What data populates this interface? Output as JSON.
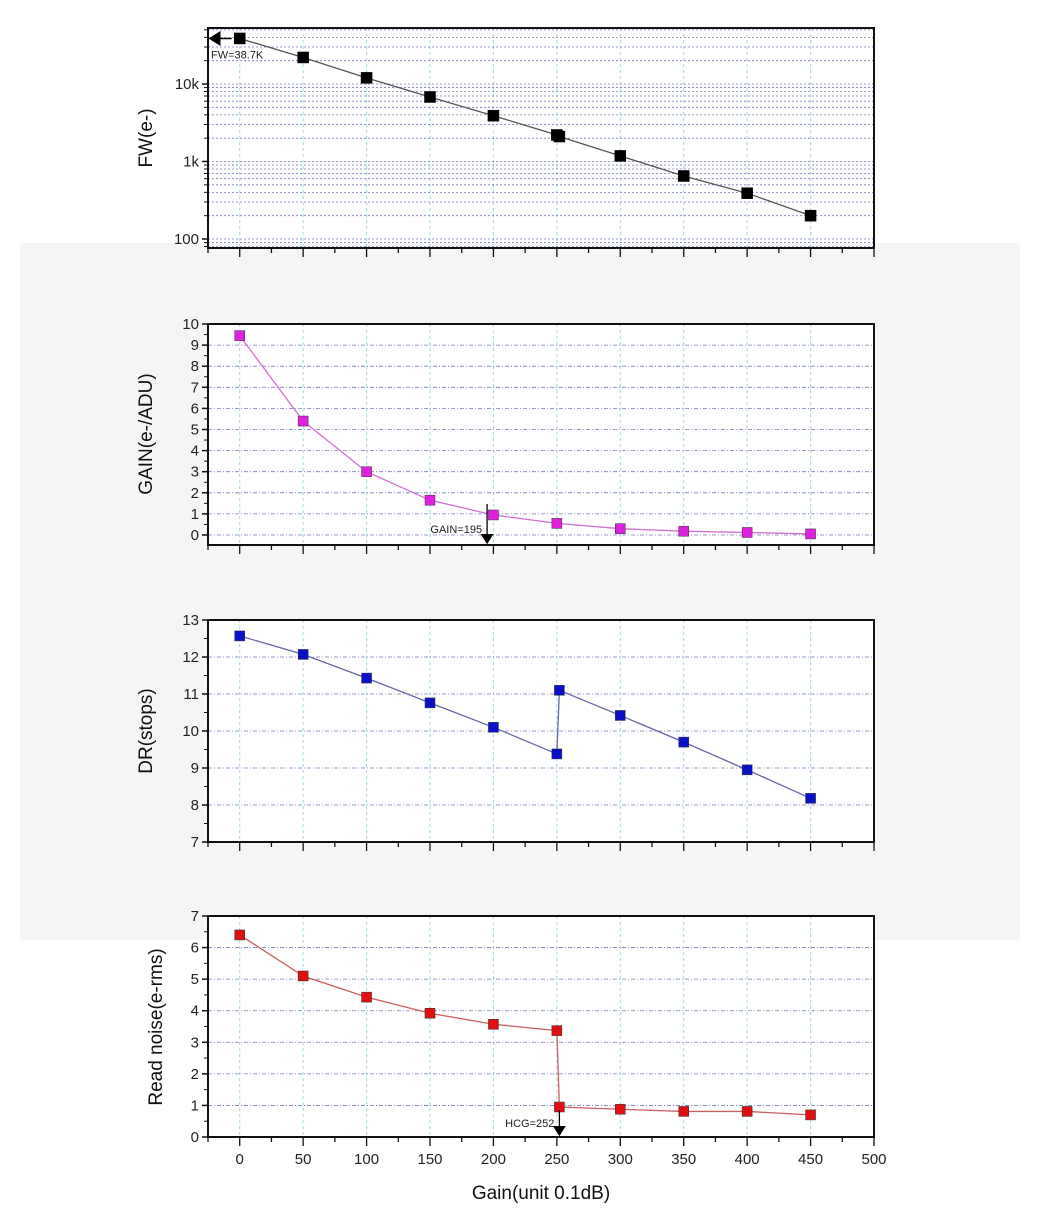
{
  "chart_data": [
    {
      "id": "fw",
      "type": "line",
      "scale": "log",
      "ylabel": "FW(e-)",
      "ylim": [
        75,
        50000
      ],
      "yticks": [
        100,
        1000,
        10000
      ],
      "ytick_labels": [
        "100",
        "1k",
        "10k"
      ],
      "color": "#000000",
      "line_color": "#555555",
      "x": [
        0,
        50,
        100,
        150,
        200,
        250,
        252,
        300,
        350,
        400,
        450
      ],
      "y": [
        38700,
        22000,
        12000,
        6800,
        3900,
        2200,
        2100,
        1180,
        650,
        390,
        200
      ],
      "annotation": {
        "text": "FW=38.7K",
        "arrow": "left",
        "x": 0,
        "y": 38700
      },
      "grid": true
    },
    {
      "id": "gain",
      "type": "line",
      "scale": "linear",
      "ylabel": "GAIN(e-/ADU)",
      "ylim": [
        -0.5,
        10
      ],
      "yticks": [
        0,
        1,
        2,
        3,
        4,
        5,
        6,
        7,
        8,
        9,
        10
      ],
      "ytick_labels": [
        "0",
        "1",
        "2",
        "3",
        "4",
        "5",
        "6",
        "7",
        "8",
        "9",
        "10"
      ],
      "color": "#e020e0",
      "line_color": "#d070d0",
      "x": [
        0,
        50,
        100,
        150,
        200,
        250,
        300,
        350,
        400,
        450
      ],
      "y": [
        9.45,
        5.4,
        3.0,
        1.65,
        0.95,
        0.55,
        0.3,
        0.18,
        0.12,
        0.05
      ],
      "annotation": {
        "text": "GAIN=195",
        "arrow": "down",
        "x": 195,
        "y": 1.0
      },
      "grid": true
    },
    {
      "id": "dr",
      "type": "line",
      "scale": "linear",
      "ylabel": "DR(stops)",
      "ylim": [
        7,
        13
      ],
      "yticks": [
        7,
        8,
        9,
        10,
        11,
        12,
        13
      ],
      "ytick_labels": [
        "7",
        "8",
        "9",
        "10",
        "11",
        "12",
        "13"
      ],
      "color": "#0a10c8",
      "line_color": "#6666aa",
      "x": [
        0,
        50,
        100,
        150,
        200,
        250,
        252,
        300,
        350,
        400,
        450
      ],
      "y": [
        12.57,
        12.07,
        11.43,
        10.76,
        10.1,
        9.38,
        11.1,
        10.42,
        9.7,
        8.95,
        8.18
      ],
      "grid": true
    },
    {
      "id": "rn",
      "type": "line",
      "scale": "linear",
      "ylabel": "Read noise(e-rms)",
      "ylim": [
        0,
        7
      ],
      "yticks": [
        0,
        1,
        2,
        3,
        4,
        5,
        6,
        7
      ],
      "ytick_labels": [
        "0",
        "1",
        "2",
        "3",
        "4",
        "5",
        "6",
        "7"
      ],
      "color": "#e01010",
      "line_color": "#c86060",
      "x": [
        0,
        50,
        100,
        150,
        200,
        250,
        252,
        300,
        350,
        400,
        450
      ],
      "y": [
        6.4,
        5.1,
        4.43,
        3.92,
        3.57,
        3.37,
        0.95,
        0.88,
        0.81,
        0.81,
        0.7
      ],
      "annotation": {
        "text": "HCG=252",
        "arrow": "down",
        "x": 252,
        "y": 0.95
      },
      "grid": true
    }
  ],
  "x_axis": {
    "label": "Gain(unit 0.1dB)",
    "xlim": [
      -25,
      500
    ],
    "ticks": [
      0,
      50,
      100,
      150,
      200,
      250,
      300,
      350,
      400,
      450,
      500
    ],
    "tick_labels": [
      "0",
      "50",
      "100",
      "150",
      "200",
      "250",
      "300",
      "350",
      "400",
      "450",
      "500"
    ]
  }
}
